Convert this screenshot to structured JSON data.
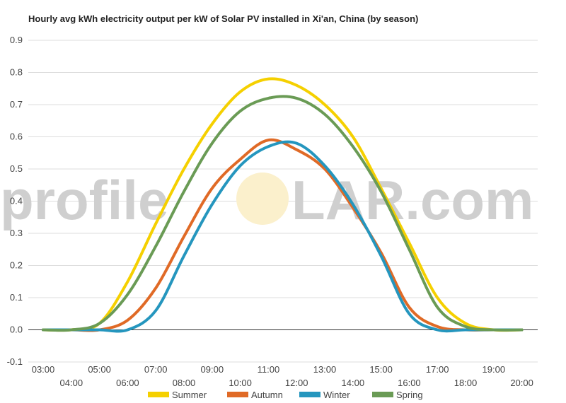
{
  "watermark": {
    "left": "profile",
    "right": "LAR.com"
  },
  "chart_data": {
    "type": "line",
    "title": "Hourly avg kWh electricity output per kW of Solar PV installed in Xi'an, China (by season)",
    "xlabel": "",
    "ylabel": "",
    "ylim": [
      -0.1,
      0.9
    ],
    "yticks": [
      "-0.1",
      "0.0",
      "0.1",
      "0.2",
      "0.3",
      "0.4",
      "0.5",
      "0.6",
      "0.7",
      "0.8",
      "0.9"
    ],
    "grid": true,
    "legend_position": "bottom",
    "categories": [
      "03:00",
      "04:00",
      "05:00",
      "06:00",
      "07:00",
      "08:00",
      "09:00",
      "10:00",
      "11:00",
      "12:00",
      "13:00",
      "14:00",
      "15:00",
      "16:00",
      "17:00",
      "18:00",
      "19:00",
      "20:00"
    ],
    "series": [
      {
        "name": "Summer",
        "color": "#f5d000",
        "values": [
          0.0,
          0.0,
          0.02,
          0.15,
          0.33,
          0.5,
          0.64,
          0.74,
          0.78,
          0.76,
          0.7,
          0.6,
          0.44,
          0.27,
          0.1,
          0.02,
          0.0,
          0.0
        ]
      },
      {
        "name": "Autumn",
        "color": "#e06a26",
        "values": [
          0.0,
          0.0,
          0.0,
          0.03,
          0.13,
          0.29,
          0.44,
          0.53,
          0.59,
          0.56,
          0.5,
          0.38,
          0.24,
          0.07,
          0.01,
          0.0,
          0.0,
          0.0
        ]
      },
      {
        "name": "Winter",
        "color": "#2596be",
        "values": [
          0.0,
          0.0,
          0.0,
          0.0,
          0.06,
          0.23,
          0.39,
          0.51,
          0.57,
          0.58,
          0.51,
          0.39,
          0.23,
          0.05,
          0.0,
          0.0,
          0.0,
          0.0
        ]
      },
      {
        "name": "Spring",
        "color": "#6a9b55",
        "values": [
          0.0,
          0.0,
          0.02,
          0.11,
          0.26,
          0.43,
          0.58,
          0.68,
          0.72,
          0.72,
          0.67,
          0.57,
          0.43,
          0.25,
          0.07,
          0.01,
          0.0,
          0.0
        ]
      }
    ]
  }
}
